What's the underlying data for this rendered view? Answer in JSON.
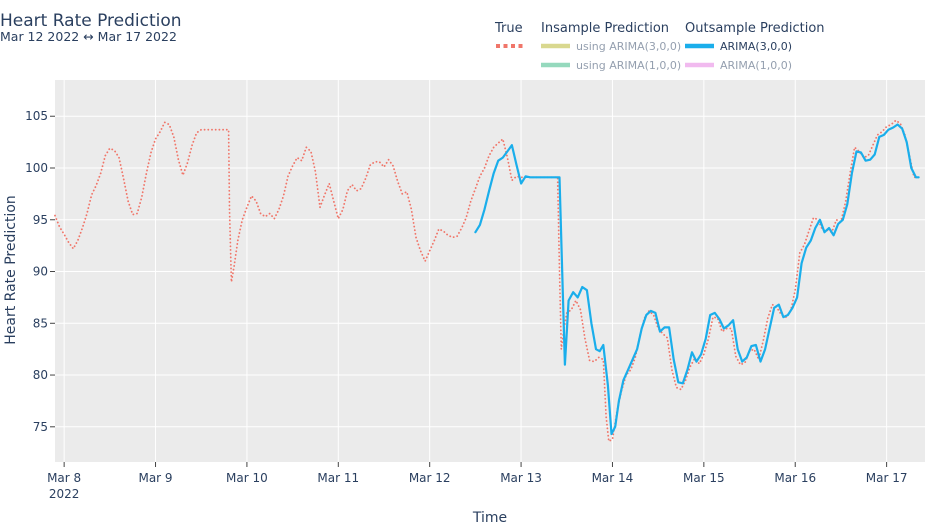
{
  "chart_data": {
    "type": "line",
    "title": "Heart Rate Prediction",
    "subtitle": "Mar 12 2022 ↔ Mar 17 2022",
    "xlabel": "Time",
    "ylabel": "Heart Rate Prediction",
    "x_ticks": [
      {
        "t": 0.0,
        "label": "Mar 8",
        "sub": "2022"
      },
      {
        "t": 1.0,
        "label": "Mar 9"
      },
      {
        "t": 2.0,
        "label": "Mar 10"
      },
      {
        "t": 3.0,
        "label": "Mar 11"
      },
      {
        "t": 4.0,
        "label": "Mar 12"
      },
      {
        "t": 5.0,
        "label": "Mar 13"
      },
      {
        "t": 6.0,
        "label": "Mar 14"
      },
      {
        "t": 7.0,
        "label": "Mar 15"
      },
      {
        "t": 8.0,
        "label": "Mar 16"
      },
      {
        "t": 9.0,
        "label": "Mar 17"
      }
    ],
    "xlim": [
      "Mar 7 2022 21:30",
      "Mar 17 2022 11:00"
    ],
    "ylim": [
      71.6,
      108.5
    ],
    "y_ticks": [
      75,
      80,
      85,
      90,
      95,
      100,
      105
    ],
    "grid": true,
    "legend_position": "top-right",
    "legend": {
      "groups": [
        {
          "title": "True",
          "items": [
            {
              "label": "",
              "color": "#f0766a",
              "style": "dot"
            }
          ]
        },
        {
          "title": "Insample Prediction",
          "items": [
            {
              "label": "using ARIMA(3,0,0)",
              "color": "#d5d483",
              "dim": true
            },
            {
              "label": "using ARIMA(1,0,0)",
              "color": "#8ad5b6",
              "dim": true
            }
          ]
        },
        {
          "title": "Outsample Prediction",
          "items": [
            {
              "label": "ARIMA(3,0,0)",
              "color": "#1aaeeb",
              "dim": false
            },
            {
              "label": "ARIMA(1,0,0)",
              "color": "#f0b3ee",
              "dim": true
            }
          ]
        }
      ]
    },
    "series": [
      {
        "name": "True",
        "color": "#f0766a",
        "style": "dot",
        "points": [
          [
            -0.1,
            95.4
          ],
          [
            -0.05,
            94.3
          ],
          [
            0.0,
            93.6
          ],
          [
            0.05,
            92.8
          ],
          [
            0.1,
            92.2
          ],
          [
            0.15,
            93.0
          ],
          [
            0.2,
            94.2
          ],
          [
            0.25,
            95.6
          ],
          [
            0.3,
            97.4
          ],
          [
            0.35,
            98.3
          ],
          [
            0.4,
            99.5
          ],
          [
            0.45,
            101.2
          ],
          [
            0.5,
            101.9
          ],
          [
            0.55,
            101.7
          ],
          [
            0.6,
            101.0
          ],
          [
            0.65,
            99.0
          ],
          [
            0.7,
            96.8
          ],
          [
            0.75,
            95.5
          ],
          [
            0.8,
            95.6
          ],
          [
            0.85,
            97.2
          ],
          [
            0.9,
            99.5
          ],
          [
            0.95,
            101.5
          ],
          [
            1.0,
            102.8
          ],
          [
            1.05,
            103.5
          ],
          [
            1.1,
            104.4
          ],
          [
            1.15,
            104.2
          ],
          [
            1.2,
            103.0
          ],
          [
            1.25,
            100.8
          ],
          [
            1.3,
            99.3
          ],
          [
            1.35,
            100.5
          ],
          [
            1.4,
            102.2
          ],
          [
            1.45,
            103.4
          ],
          [
            1.5,
            103.7
          ],
          [
            1.6,
            103.7
          ],
          [
            1.7,
            103.7
          ],
          [
            1.8,
            103.7
          ],
          [
            1.81,
            96.0
          ],
          [
            1.83,
            89.0
          ],
          [
            1.86,
            90.5
          ],
          [
            1.9,
            93.0
          ],
          [
            1.95,
            95.0
          ],
          [
            2.0,
            96.2
          ],
          [
            2.05,
            97.3
          ],
          [
            2.1,
            96.8
          ],
          [
            2.15,
            95.6
          ],
          [
            2.2,
            95.3
          ],
          [
            2.25,
            95.6
          ],
          [
            2.3,
            95.1
          ],
          [
            2.35,
            96.0
          ],
          [
            2.4,
            97.3
          ],
          [
            2.45,
            99.2
          ],
          [
            2.5,
            100.2
          ],
          [
            2.55,
            101.0
          ],
          [
            2.6,
            100.7
          ],
          [
            2.65,
            102.0
          ],
          [
            2.7,
            101.6
          ],
          [
            2.75,
            99.6
          ],
          [
            2.8,
            96.2
          ],
          [
            2.85,
            97.4
          ],
          [
            2.9,
            98.5
          ],
          [
            2.95,
            96.8
          ],
          [
            3.0,
            95.1
          ],
          [
            3.05,
            96.0
          ],
          [
            3.1,
            97.8
          ],
          [
            3.15,
            98.4
          ],
          [
            3.2,
            97.8
          ],
          [
            3.25,
            98.0
          ],
          [
            3.3,
            99.0
          ],
          [
            3.35,
            100.3
          ],
          [
            3.4,
            100.6
          ],
          [
            3.45,
            100.6
          ],
          [
            3.5,
            100.1
          ],
          [
            3.55,
            100.8
          ],
          [
            3.6,
            100.2
          ],
          [
            3.65,
            98.7
          ],
          [
            3.7,
            97.5
          ],
          [
            3.75,
            97.7
          ],
          [
            3.8,
            96.0
          ],
          [
            3.85,
            93.3
          ],
          [
            3.9,
            92.0
          ],
          [
            3.95,
            91.0
          ],
          [
            4.0,
            92.0
          ],
          [
            4.05,
            93.0
          ],
          [
            4.1,
            94.1
          ],
          [
            4.15,
            93.9
          ],
          [
            4.2,
            93.5
          ],
          [
            4.25,
            93.3
          ],
          [
            4.3,
            93.4
          ],
          [
            4.35,
            94.2
          ],
          [
            4.4,
            95.2
          ],
          [
            4.45,
            96.8
          ],
          [
            4.5,
            98.0
          ],
          [
            4.55,
            99.2
          ],
          [
            4.6,
            100.0
          ],
          [
            4.65,
            101.2
          ],
          [
            4.7,
            102.0
          ],
          [
            4.75,
            102.4
          ],
          [
            4.8,
            102.8
          ],
          [
            4.85,
            101.0
          ],
          [
            4.9,
            98.8
          ],
          [
            4.95,
            99.2
          ],
          [
            5.0,
            99.1
          ],
          [
            5.1,
            99.1
          ],
          [
            5.2,
            99.1
          ],
          [
            5.3,
            99.1
          ],
          [
            5.4,
            99.1
          ],
          [
            5.42,
            90.0
          ],
          [
            5.44,
            82.5
          ],
          [
            5.47,
            84.5
          ],
          [
            5.5,
            86.0
          ],
          [
            5.55,
            86.3
          ],
          [
            5.6,
            87.2
          ],
          [
            5.65,
            86.3
          ],
          [
            5.7,
            83.5
          ],
          [
            5.75,
            81.4
          ],
          [
            5.8,
            81.3
          ],
          [
            5.85,
            81.7
          ],
          [
            5.9,
            81.5
          ],
          [
            5.93,
            76.0
          ],
          [
            5.96,
            73.6
          ],
          [
            6.0,
            73.8
          ],
          [
            6.05,
            76.5
          ],
          [
            6.1,
            78.5
          ],
          [
            6.15,
            80.0
          ],
          [
            6.2,
            80.5
          ],
          [
            6.25,
            81.7
          ],
          [
            6.3,
            83.8
          ],
          [
            6.35,
            85.5
          ],
          [
            6.4,
            86.2
          ],
          [
            6.45,
            85.8
          ],
          [
            6.5,
            84.5
          ],
          [
            6.55,
            84.0
          ],
          [
            6.6,
            83.6
          ],
          [
            6.65,
            80.5
          ],
          [
            6.7,
            78.8
          ],
          [
            6.75,
            78.6
          ],
          [
            6.8,
            79.5
          ],
          [
            6.85,
            80.8
          ],
          [
            6.9,
            81.6
          ],
          [
            6.95,
            81.1
          ],
          [
            7.0,
            82.0
          ],
          [
            7.05,
            83.5
          ],
          [
            7.1,
            85.6
          ],
          [
            7.15,
            85.5
          ],
          [
            7.2,
            84.2
          ],
          [
            7.25,
            84.5
          ],
          [
            7.3,
            84.5
          ],
          [
            7.35,
            81.8
          ],
          [
            7.4,
            81.0
          ],
          [
            7.45,
            81.2
          ],
          [
            7.5,
            82.3
          ],
          [
            7.55,
            82.5
          ],
          [
            7.6,
            81.5
          ],
          [
            7.65,
            83.3
          ],
          [
            7.7,
            85.5
          ],
          [
            7.75,
            86.8
          ],
          [
            7.8,
            86.5
          ],
          [
            7.85,
            85.8
          ],
          [
            7.9,
            85.6
          ],
          [
            7.95,
            86.2
          ],
          [
            8.0,
            88.2
          ],
          [
            8.05,
            91.8
          ],
          [
            8.1,
            92.6
          ],
          [
            8.15,
            93.9
          ],
          [
            8.2,
            95.2
          ],
          [
            8.25,
            95.0
          ],
          [
            8.3,
            94.0
          ],
          [
            8.35,
            94.0
          ],
          [
            8.4,
            93.8
          ],
          [
            8.45,
            95.0
          ],
          [
            8.5,
            94.8
          ],
          [
            8.55,
            96.7
          ],
          [
            8.6,
            99.5
          ],
          [
            8.65,
            102.0
          ],
          [
            8.7,
            101.6
          ],
          [
            8.75,
            101.0
          ],
          [
            8.8,
            101.2
          ],
          [
            8.85,
            102.2
          ],
          [
            8.9,
            103.2
          ],
          [
            8.95,
            103.5
          ],
          [
            9.0,
            104.0
          ],
          [
            9.05,
            104.2
          ],
          [
            9.1,
            104.6
          ],
          [
            9.15,
            104.3
          ],
          [
            9.2,
            103.2
          ],
          [
            9.25,
            101.2
          ],
          [
            9.3,
            99.1
          ],
          [
            9.35,
            99.1
          ]
        ]
      },
      {
        "name": "ARIMA(3,0,0)",
        "color": "#1aaeeb",
        "style": "solid",
        "points": [
          [
            4.5,
            93.8
          ],
          [
            4.55,
            94.5
          ],
          [
            4.6,
            96.0
          ],
          [
            4.65,
            97.8
          ],
          [
            4.7,
            99.5
          ],
          [
            4.75,
            100.7
          ],
          [
            4.8,
            101.0
          ],
          [
            4.85,
            101.6
          ],
          [
            4.9,
            102.2
          ],
          [
            4.95,
            100.3
          ],
          [
            5.0,
            98.5
          ],
          [
            5.05,
            99.2
          ],
          [
            5.1,
            99.1
          ],
          [
            5.2,
            99.1
          ],
          [
            5.3,
            99.1
          ],
          [
            5.4,
            99.1
          ],
          [
            5.42,
            99.1
          ],
          [
            5.45,
            90.0
          ],
          [
            5.48,
            81.0
          ],
          [
            5.52,
            87.2
          ],
          [
            5.57,
            88.0
          ],
          [
            5.62,
            87.5
          ],
          [
            5.67,
            88.5
          ],
          [
            5.72,
            88.2
          ],
          [
            5.77,
            85.0
          ],
          [
            5.82,
            82.5
          ],
          [
            5.86,
            82.3
          ],
          [
            5.9,
            82.9
          ],
          [
            5.95,
            79.0
          ],
          [
            5.99,
            74.3
          ],
          [
            6.03,
            75.0
          ],
          [
            6.07,
            77.5
          ],
          [
            6.12,
            79.5
          ],
          [
            6.17,
            80.5
          ],
          [
            6.22,
            81.5
          ],
          [
            6.27,
            82.5
          ],
          [
            6.32,
            84.5
          ],
          [
            6.37,
            85.8
          ],
          [
            6.42,
            86.2
          ],
          [
            6.47,
            86.0
          ],
          [
            6.52,
            84.2
          ],
          [
            6.57,
            84.6
          ],
          [
            6.62,
            84.6
          ],
          [
            6.67,
            81.5
          ],
          [
            6.72,
            79.3
          ],
          [
            6.77,
            79.2
          ],
          [
            6.82,
            80.5
          ],
          [
            6.87,
            82.2
          ],
          [
            6.92,
            81.3
          ],
          [
            6.97,
            82.0
          ],
          [
            7.02,
            83.5
          ],
          [
            7.07,
            85.8
          ],
          [
            7.12,
            86.0
          ],
          [
            7.17,
            85.4
          ],
          [
            7.22,
            84.5
          ],
          [
            7.27,
            84.8
          ],
          [
            7.32,
            85.3
          ],
          [
            7.37,
            82.5
          ],
          [
            7.42,
            81.3
          ],
          [
            7.47,
            81.7
          ],
          [
            7.52,
            82.8
          ],
          [
            7.57,
            82.9
          ],
          [
            7.62,
            81.3
          ],
          [
            7.67,
            82.5
          ],
          [
            7.72,
            84.5
          ],
          [
            7.77,
            86.5
          ],
          [
            7.82,
            86.8
          ],
          [
            7.87,
            85.6
          ],
          [
            7.92,
            85.8
          ],
          [
            7.97,
            86.5
          ],
          [
            8.02,
            87.5
          ],
          [
            8.07,
            90.8
          ],
          [
            8.12,
            92.3
          ],
          [
            8.17,
            93.0
          ],
          [
            8.22,
            94.2
          ],
          [
            8.27,
            95.0
          ],
          [
            8.32,
            93.8
          ],
          [
            8.37,
            94.2
          ],
          [
            8.42,
            93.5
          ],
          [
            8.47,
            94.6
          ],
          [
            8.52,
            95.0
          ],
          [
            8.57,
            96.5
          ],
          [
            8.62,
            99.5
          ],
          [
            8.67,
            101.6
          ],
          [
            8.72,
            101.5
          ],
          [
            8.77,
            100.7
          ],
          [
            8.82,
            100.8
          ],
          [
            8.87,
            101.3
          ],
          [
            8.92,
            103.0
          ],
          [
            8.97,
            103.2
          ],
          [
            9.02,
            103.7
          ],
          [
            9.07,
            103.9
          ],
          [
            9.12,
            104.2
          ],
          [
            9.17,
            103.8
          ],
          [
            9.22,
            102.5
          ],
          [
            9.27,
            100.0
          ],
          [
            9.32,
            99.1
          ],
          [
            9.35,
            99.1
          ]
        ]
      }
    ]
  }
}
